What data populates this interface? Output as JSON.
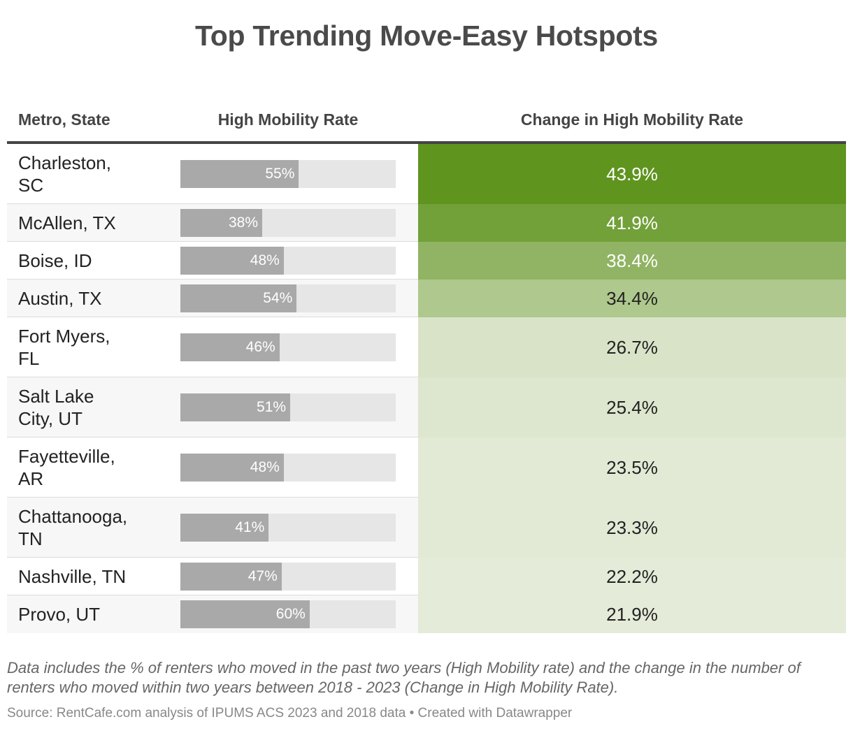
{
  "title": "Top Trending Move-Easy Hotspots",
  "headers": {
    "metro": "Metro, State",
    "rate": "High Mobility Rate",
    "change": "Change in High Mobility Rate"
  },
  "note": "Data includes the % of renters who moved in the past two years (High Mobility rate) and the change in the number of renters who moved within two years between 2018 - 2023 (Change in High Mobility Rate).",
  "source": "Source: RentCafe.com analysis of IPUMS ACS 2023 and 2018 data • Created with Datawrapper",
  "colors": {
    "bar": "#a9a9a9",
    "bar_track": "#e6e6e6",
    "heat_dark": "#5f941f",
    "heat_light": "#e4ebd8"
  },
  "chart_data": {
    "type": "table",
    "bar_max": 100,
    "rows": [
      {
        "metro": "Charleston,\nSC",
        "rate": 55,
        "rate_label": "55%",
        "change": 43.9,
        "change_label": "43.9%"
      },
      {
        "metro": "McAllen, TX",
        "rate": 38,
        "rate_label": "38%",
        "change": 41.9,
        "change_label": "41.9%"
      },
      {
        "metro": "Boise, ID",
        "rate": 48,
        "rate_label": "48%",
        "change": 38.4,
        "change_label": "38.4%"
      },
      {
        "metro": "Austin, TX",
        "rate": 54,
        "rate_label": "54%",
        "change": 34.4,
        "change_label": "34.4%"
      },
      {
        "metro": "Fort Myers,\nFL",
        "rate": 46,
        "rate_label": "46%",
        "change": 26.7,
        "change_label": "26.7%"
      },
      {
        "metro": "Salt Lake\nCity, UT",
        "rate": 51,
        "rate_label": "51%",
        "change": 25.4,
        "change_label": "25.4%"
      },
      {
        "metro": "Fayetteville,\nAR",
        "rate": 48,
        "rate_label": "48%",
        "change": 23.5,
        "change_label": "23.5%"
      },
      {
        "metro": "Chattanooga,\nTN",
        "rate": 41,
        "rate_label": "41%",
        "change": 23.3,
        "change_label": "23.3%"
      },
      {
        "metro": "Nashville, TN",
        "rate": 47,
        "rate_label": "47%",
        "change": 22.2,
        "change_label": "22.2%"
      },
      {
        "metro": "Provo, UT",
        "rate": 60,
        "rate_label": "60%",
        "change": 21.9,
        "change_label": "21.9%"
      }
    ]
  }
}
